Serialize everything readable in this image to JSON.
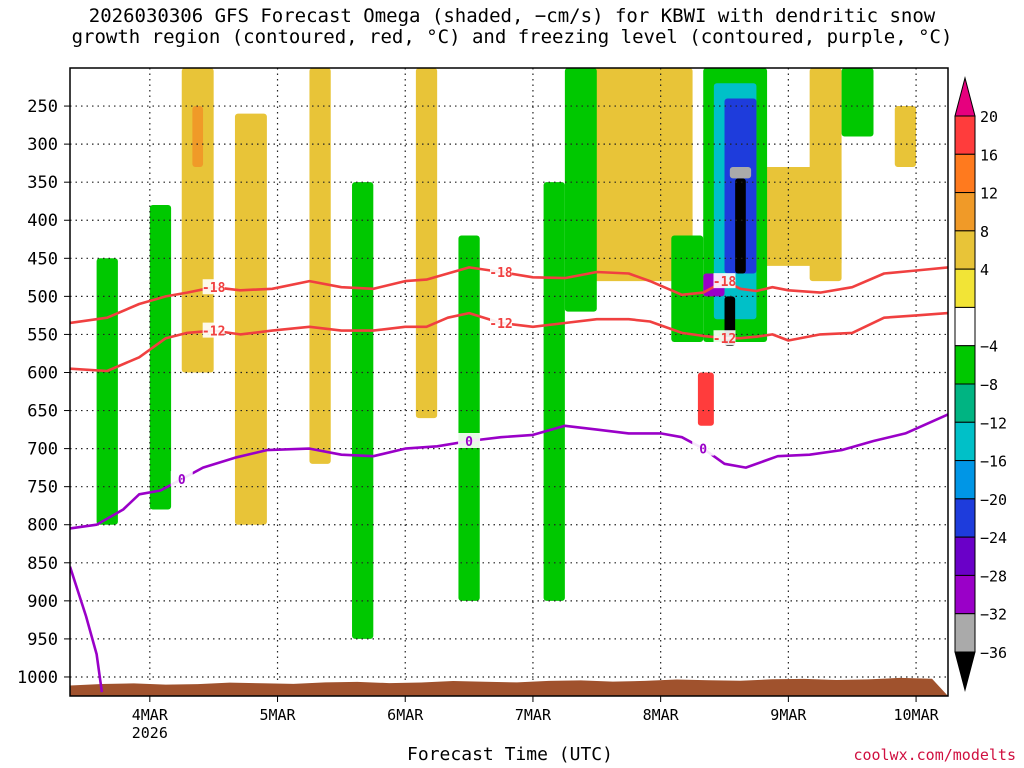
{
  "title": {
    "line1": "2026030306 GFS Forecast Omega (shaded, −cm/s) for KBWI with dendritic snow",
    "line2": "growth region (contoured, red, °C) and freezing level (contoured, purple, °C)"
  },
  "xlabel": "Forecast Time (UTC)",
  "watermark": "coolwx.com/modelts",
  "chart_data": {
    "type": "heatmap",
    "x": {
      "tick_labels": [
        "4MAR",
        "5MAR",
        "6MAR",
        "7MAR",
        "8MAR",
        "9MAR",
        "10MAR"
      ],
      "year_label": "2026",
      "range_hours": [
        -15,
        150
      ]
    },
    "y": {
      "label": "",
      "tick_labels": [
        "250",
        "300",
        "350",
        "400",
        "450",
        "500",
        "550",
        "600",
        "650",
        "700",
        "750",
        "800",
        "850",
        "900",
        "950",
        "1000"
      ],
      "range_hpa": [
        200,
        1025
      ]
    },
    "colorbar": {
      "labels": [
        "20",
        "16",
        "12",
        "8",
        "4",
        "−4",
        "−8",
        "−12",
        "−16",
        "−20",
        "−24",
        "−28",
        "−32",
        "−36"
      ],
      "colors": [
        "#e6007e",
        "#ff3c3c",
        "#ff7a1e",
        "#f09a28",
        "#e8c438",
        "#f2e436",
        "#ffffff",
        "#00c800",
        "#00b482",
        "#00c0c8",
        "#0096e6",
        "#1e3cdc",
        "#6a00c8",
        "#9a00c8",
        "#aaaaaa",
        "#000000"
      ]
    },
    "contours": [
      {
        "level": "-18",
        "color": "#f04040",
        "x": [
          -15,
          -8,
          -2,
          3,
          7,
          12,
          17,
          23,
          30,
          36,
          42,
          48,
          52,
          56,
          60,
          66,
          72,
          78,
          84,
          90,
          94,
          100,
          104,
          108,
          111,
          114,
          117,
          120,
          126,
          132,
          138,
          144,
          150
        ],
        "y": [
          535,
          528,
          510,
          500,
          495,
          488,
          492,
          490,
          480,
          488,
          490,
          480,
          478,
          470,
          462,
          468,
          475,
          476,
          468,
          470,
          480,
          498,
          495,
          480,
          490,
          493,
          488,
          492,
          495,
          488,
          470,
          466,
          462
        ]
      },
      {
        "level": "-12",
        "color": "#f04040",
        "x": [
          -15,
          -8,
          -2,
          3,
          7,
          12,
          17,
          23,
          30,
          36,
          42,
          48,
          52,
          56,
          60,
          66,
          72,
          78,
          84,
          90,
          94,
          100,
          104,
          108,
          111,
          114,
          117,
          120,
          126,
          132,
          138,
          144,
          150
        ],
        "y": [
          595,
          598,
          580,
          555,
          548,
          545,
          550,
          545,
          540,
          545,
          545,
          540,
          540,
          528,
          522,
          535,
          540,
          535,
          530,
          530,
          533,
          548,
          552,
          555,
          555,
          553,
          550,
          558,
          550,
          548,
          528,
          525,
          522
        ]
      },
      {
        "level": "0",
        "color": "#9a00c8",
        "x": [
          -15,
          -10,
          -5,
          -2,
          2,
          6,
          10,
          16,
          22,
          30,
          36,
          42,
          48,
          54,
          60,
          66,
          72,
          78,
          84,
          90,
          96,
          100,
          104,
          108,
          112,
          118,
          124,
          130,
          136,
          142,
          150
        ],
        "y": [
          805,
          800,
          780,
          760,
          755,
          740,
          725,
          712,
          702,
          700,
          708,
          710,
          700,
          697,
          690,
          685,
          682,
          670,
          675,
          680,
          680,
          685,
          700,
          720,
          725,
          710,
          708,
          702,
          690,
          680,
          655
        ]
      },
      {
        "level": "0",
        "color": "#9a00c8",
        "x": [
          -15,
          -12,
          -10,
          -9
        ],
        "y": [
          855,
          920,
          970,
          1020
        ]
      }
    ],
    "shaded_regions": [
      {
        "color": "#e6007e",
        "x": [
          88,
          94
        ],
        "y": [
          265,
          395
        ]
      },
      {
        "color": "#ff3c3c",
        "x": [
          86,
          96
        ],
        "y": [
          230,
          400
        ]
      },
      {
        "color": "#f09a28",
        "x": [
          84,
          98
        ],
        "y": [
          200,
          450
        ]
      },
      {
        "color": "#e8c438",
        "x": [
          82,
          102
        ],
        "y": [
          200,
          480
        ]
      },
      {
        "color": "#ff7a1e",
        "x": [
          118,
          124
        ],
        "y": [
          360,
          430
        ]
      },
      {
        "color": "#e8c438",
        "x": [
          114,
          130
        ],
        "y": [
          330,
          460
        ]
      },
      {
        "color": "#00c800",
        "x": [
          104,
          116
        ],
        "y": [
          200,
          560
        ]
      },
      {
        "color": "#00c0c8",
        "x": [
          106,
          114
        ],
        "y": [
          220,
          530
        ]
      },
      {
        "color": "#1e3cdc",
        "x": [
          108,
          114
        ],
        "y": [
          240,
          470
        ]
      },
      {
        "color": "#000000",
        "x": [
          110,
          112
        ],
        "y": [
          345,
          470
        ]
      },
      {
        "color": "#aaaaaa",
        "x": [
          109,
          113
        ],
        "y": [
          330,
          345
        ]
      },
      {
        "color": "#000000",
        "x": [
          108,
          110
        ],
        "y": [
          500,
          565
        ]
      },
      {
        "color": "#9a00c8",
        "x": [
          104,
          108
        ],
        "y": [
          470,
          500
        ]
      },
      {
        "color": "#00c800",
        "x": [
          98,
          104
        ],
        "y": [
          420,
          560
        ]
      },
      {
        "color": "#ff3c3c",
        "x": [
          103,
          106
        ],
        "y": [
          600,
          670
        ]
      },
      {
        "color": "#00c800",
        "x": [
          78,
          84
        ],
        "y": [
          200,
          520
        ]
      },
      {
        "color": "#00c800",
        "x": [
          74,
          78
        ],
        "y": [
          350,
          900
        ]
      },
      {
        "color": "#e8c438",
        "x": [
          6,
          12
        ],
        "y": [
          200,
          600
        ]
      },
      {
        "color": "#f09a28",
        "x": [
          8,
          10
        ],
        "y": [
          250,
          330
        ]
      },
      {
        "color": "#00c800",
        "x": [
          0,
          4
        ],
        "y": [
          380,
          780
        ]
      },
      {
        "color": "#00c800",
        "x": [
          -10,
          -6
        ],
        "y": [
          450,
          800
        ]
      },
      {
        "color": "#e8c438",
        "x": [
          16,
          22
        ],
        "y": [
          260,
          800
        ]
      },
      {
        "color": "#e8c438",
        "x": [
          30,
          34
        ],
        "y": [
          200,
          720
        ]
      },
      {
        "color": "#00c800",
        "x": [
          38,
          42
        ],
        "y": [
          350,
          950
        ]
      },
      {
        "color": "#e8c438",
        "x": [
          50,
          54
        ],
        "y": [
          200,
          660
        ]
      },
      {
        "color": "#00c800",
        "x": [
          58,
          62
        ],
        "y": [
          420,
          900
        ]
      },
      {
        "color": "#e8c438",
        "x": [
          124,
          130
        ],
        "y": [
          200,
          480
        ]
      },
      {
        "color": "#00c800",
        "x": [
          130,
          136
        ],
        "y": [
          200,
          290
        ]
      },
      {
        "color": "#e8c438",
        "x": [
          140,
          144
        ],
        "y": [
          250,
          330
        ]
      }
    ],
    "ground_color": "#a0522d"
  }
}
